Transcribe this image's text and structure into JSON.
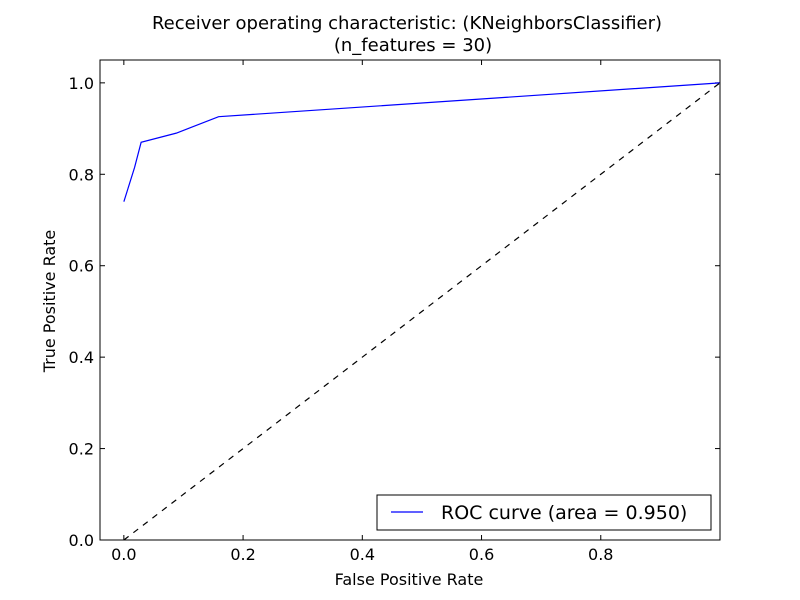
{
  "chart_data": {
    "type": "line",
    "title": "Receiver operating characteristic: (KNeighborsClassifier)",
    "subtitle": "(n_features = 30)",
    "xlabel": "False Positive Rate",
    "ylabel": "True Positive Rate",
    "xlim": [
      -0.04,
      1.0
    ],
    "ylim": [
      0.0,
      1.05
    ],
    "x_ticks": [
      0.0,
      0.2,
      0.4,
      0.6,
      0.8
    ],
    "x_tick_labels": [
      "0.0",
      "0.2",
      "0.4",
      "0.6",
      "0.8"
    ],
    "y_ticks": [
      0.0,
      0.2,
      0.4,
      0.6,
      0.8,
      1.0
    ],
    "y_tick_labels": [
      "0.0",
      "0.2",
      "0.4",
      "0.6",
      "0.8",
      "1.0"
    ],
    "grid": false,
    "legend_position": "lower-right",
    "series": [
      {
        "name": "ROC curve (area = 0.950)",
        "color": "#0000ff",
        "line_style": "solid",
        "x": [
          0.0,
          0.018,
          0.029,
          0.088,
          0.159,
          1.0
        ],
        "y": [
          0.74,
          0.815,
          0.87,
          0.89,
          0.926,
          1.0
        ]
      },
      {
        "color": "#000000",
        "line_style": "dashed",
        "x": [
          0.0,
          1.0
        ],
        "y": [
          0.0,
          1.0
        ]
      }
    ]
  }
}
